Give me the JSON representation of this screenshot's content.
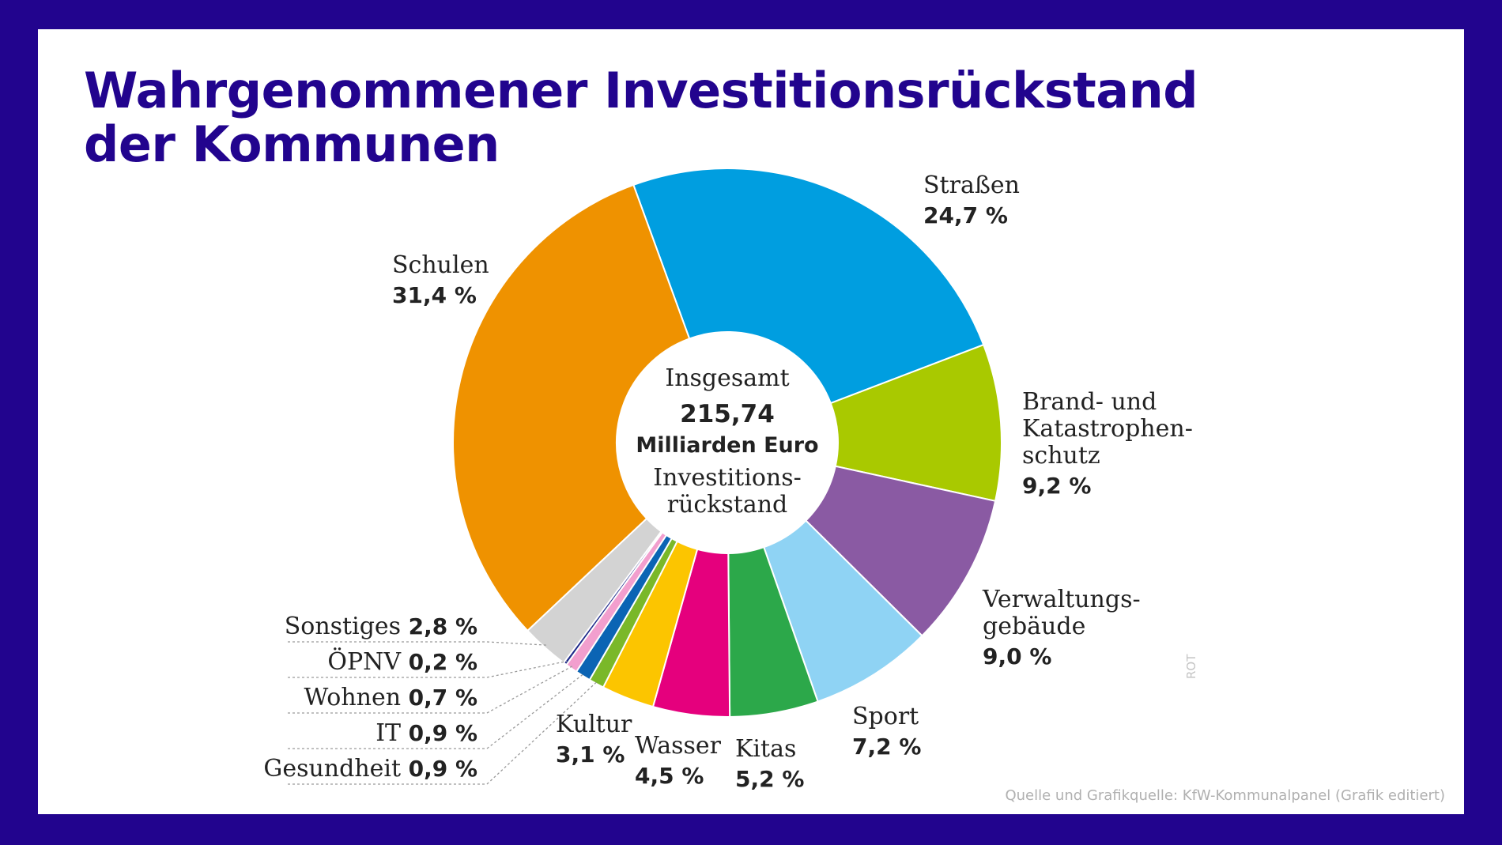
{
  "slide": {
    "title_line1": "Wahrgenommener Investitionsrückstand",
    "title_line2": "der Kommunen",
    "credit": "Quelle und Grafikquelle: KfW-Kommunalpanel (Grafik editiert)",
    "watermark": "ROT"
  },
  "chart_data": {
    "type": "pie",
    "center": {
      "line1": "Insgesamt",
      "total": "215,74",
      "unit": "Milliarden Euro",
      "line3": "Investitions-",
      "line4": "rückstand"
    },
    "slices": [
      {
        "key": "strassen",
        "label_lines": [
          "Straßen"
        ],
        "value_text": "24,7 %",
        "value": 24.7,
        "color": "#009ee0"
      },
      {
        "key": "brand",
        "label_lines": [
          "Brand- und",
          "Katastrophen-",
          "schutz"
        ],
        "value_text": "9,2 %",
        "value": 9.2,
        "color": "#a9c900"
      },
      {
        "key": "verwaltung",
        "label_lines": [
          "Verwaltungs-",
          "gebäude"
        ],
        "value_text": "9,0 %",
        "value": 9.0,
        "color": "#8a5aa3"
      },
      {
        "key": "sport",
        "label_lines": [
          "Sport"
        ],
        "value_text": "7,2 %",
        "value": 7.2,
        "color": "#8fd3f4"
      },
      {
        "key": "kitas",
        "label_lines": [
          "Kitas"
        ],
        "value_text": "5,2 %",
        "value": 5.2,
        "color": "#2ca84a"
      },
      {
        "key": "wasser",
        "label_lines": [
          "Wasser"
        ],
        "value_text": "4,5 %",
        "value": 4.5,
        "color": "#e5007d"
      },
      {
        "key": "kultur",
        "label_lines": [
          "Kultur"
        ],
        "value_text": "3,1 %",
        "value": 3.1,
        "color": "#fcc500"
      },
      {
        "key": "gesundheit",
        "label_lines": [
          "Gesundheit"
        ],
        "value_text": "0,9 %",
        "value": 0.9,
        "color": "#7ab829"
      },
      {
        "key": "it",
        "label_lines": [
          "IT"
        ],
        "value_text": "0,9 %",
        "value": 0.9,
        "color": "#0b64b4"
      },
      {
        "key": "wohnen",
        "label_lines": [
          "Wohnen"
        ],
        "value_text": "0,7 %",
        "value": 0.7,
        "color": "#f29fce"
      },
      {
        "key": "oepnv",
        "label_lines": [
          "ÖPNV"
        ],
        "value_text": "0,2 %",
        "value": 0.2,
        "color": "#1f2a8a"
      },
      {
        "key": "sonstiges",
        "label_lines": [
          "Sonstiges"
        ],
        "value_text": "2,8 %",
        "value": 2.8,
        "color": "#d3d3d3"
      },
      {
        "key": "schulen",
        "label_lines": [
          "Schulen"
        ],
        "value_text": "31,4 %",
        "value": 31.4,
        "color": "#ef9200"
      }
    ]
  }
}
